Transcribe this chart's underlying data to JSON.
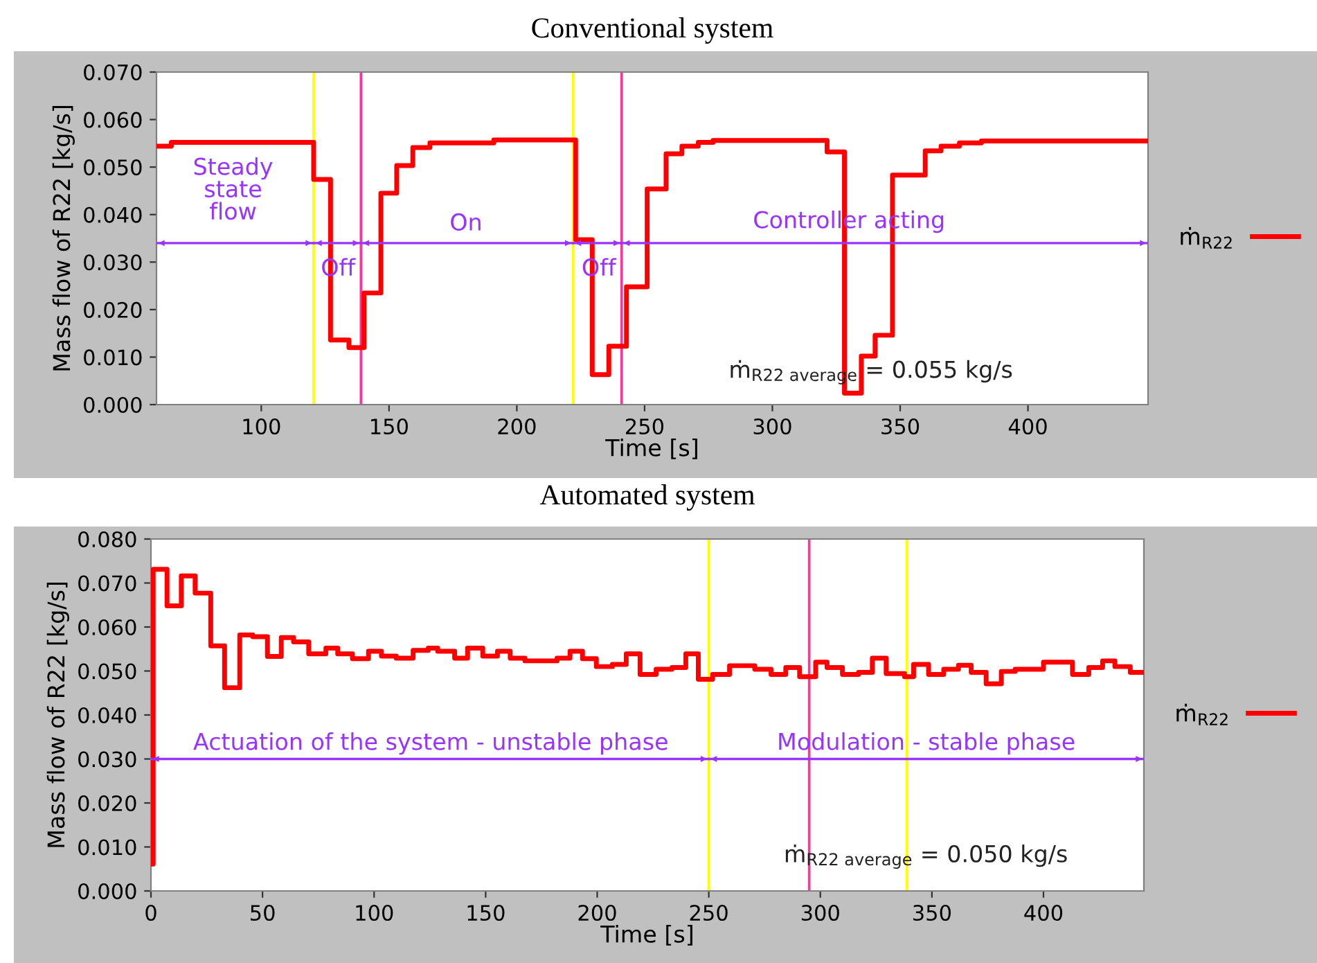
{
  "chart_data": [
    {
      "type": "step",
      "title": "Conventional system",
      "xlabel": "Time [s]",
      "ylabel": "Mass flow of R22 [kg/s]",
      "x": [
        59,
        64.8,
        120.5,
        127.1,
        134.3,
        140.2,
        146.8,
        153,
        159.3,
        166,
        191,
        223,
        229.5,
        236,
        242.9,
        251,
        258.4,
        264.6,
        271,
        276.8,
        321.4,
        328.2,
        334.8,
        340.2,
        347,
        359.8,
        366,
        373.2,
        381.8,
        447
      ],
      "series": [
        {
          "name": "ṁ$_{R22}$",
          "color": "#ff0000",
          "values": [
            0.0544,
            0.0552,
            0.0474,
            0.0136,
            0.012,
            0.0235,
            0.0445,
            0.0503,
            0.0541,
            0.0551,
            0.0557,
            0.0347,
            0.0063,
            0.0123,
            0.0248,
            0.0454,
            0.0528,
            0.0544,
            0.0552,
            0.0556,
            0.0532,
            0.0024,
            0.0102,
            0.0146,
            0.0483,
            0.0534,
            0.0544,
            0.0551,
            0.0555,
            0.0555
          ]
        },
        {
          "type": "line",
          "color": "#9933ff",
          "x": [
            59,
            120.5
          ],
          "values": [
            0.034,
            0.034
          ]
        },
        {
          "type": "line",
          "color": "#9933ff",
          "x": [
            120.5,
            139
          ],
          "values": [
            0.034,
            0.034
          ]
        },
        {
          "type": "line",
          "color": "#9933ff",
          "x": [
            139,
            222
          ],
          "values": [
            0.034,
            0.034
          ]
        },
        {
          "type": "line",
          "color": "#9933ff",
          "x": [
            222,
            241
          ],
          "values": [
            0.034,
            0.034
          ]
        },
        {
          "type": "line",
          "color": "#9933ff",
          "x": [
            241,
            447
          ],
          "values": [
            0.034,
            0.034
          ]
        }
      ],
      "xlim": [
        59,
        447
      ],
      "xticks": [
        100,
        150,
        200,
        250,
        300,
        350,
        400
      ],
      "ylim": [
        0,
        0.07
      ],
      "yticks": [
        {
          "value": 0,
          "label": "0.000"
        },
        {
          "value": 0.01,
          "label": "0.010"
        },
        {
          "value": 0.02,
          "label": "0.020"
        },
        {
          "value": 0.03,
          "label": "0.030"
        },
        {
          "value": 0.04,
          "label": "0.040"
        },
        {
          "value": 0.05,
          "label": "0.050"
        },
        {
          "value": 0.06,
          "label": "0.060"
        },
        {
          "value": 0.07,
          "label": "0.070"
        }
      ],
      "ref_lines": [
        {
          "axis": "x",
          "value": 120.5,
          "color": "#ffff00"
        },
        {
          "axis": "x",
          "value": 139,
          "color": "#ff3399"
        },
        {
          "axis": "x",
          "value": 222,
          "color": "#ffff00"
        },
        {
          "axis": "x",
          "value": 241,
          "color": "#ff3399"
        }
      ],
      "annotations": [
        "Steady\nstate\nflow",
        "Off",
        "On",
        "Off",
        "Controller acting",
        "ṁ$_{R22 average}$ = 0.055 kg/s"
      ],
      "legend": "right",
      "grid": false
    },
    {
      "type": "step",
      "title": "Automated system",
      "xlabel": "Time [s]",
      "ylabel": "Mass flow of R22 [kg/s]",
      "x": [
        0,
        1,
        7.2,
        13.6,
        19.8,
        26.8,
        33,
        39.8,
        45.6,
        52.2,
        58.4,
        63.9,
        70.7,
        78.4,
        83.7,
        90.3,
        97.5,
        103.3,
        109.9,
        117.5,
        124.3,
        128.5,
        136.1,
        141.9,
        148.7,
        155.3,
        161,
        167.6,
        182,
        187.8,
        193.4,
        199.6,
        206.8,
        213,
        219.2,
        226.4,
        233.5,
        239.7,
        245.3,
        251.7,
        259.3,
        270.6,
        277.9,
        284.5,
        290.7,
        297.9,
        303,
        309.9,
        317.1,
        323.3,
        329.5,
        337.7,
        341.8,
        348.5,
        355.3,
        361.9,
        367.6,
        374.3,
        381.1,
        387.3,
        400,
        413,
        420.3,
        426.5,
        432,
        438.9,
        445
      ],
      "series": [
        {
          "name": "ṁ$_{R22}$",
          "color": "#ff0000",
          "values": [
            0.0061,
            0.0731,
            0.0648,
            0.0716,
            0.0677,
            0.0557,
            0.0462,
            0.0582,
            0.0578,
            0.0533,
            0.0576,
            0.0566,
            0.0539,
            0.0552,
            0.0539,
            0.0528,
            0.0545,
            0.0534,
            0.0529,
            0.0547,
            0.0552,
            0.0545,
            0.0529,
            0.0552,
            0.0534,
            0.0545,
            0.0529,
            0.0523,
            0.0529,
            0.0545,
            0.0528,
            0.051,
            0.0515,
            0.0539,
            0.0492,
            0.0504,
            0.0508,
            0.0539,
            0.0481,
            0.0492,
            0.0512,
            0.0504,
            0.0492,
            0.0508,
            0.0487,
            0.052,
            0.0508,
            0.0492,
            0.0497,
            0.0529,
            0.0494,
            0.0487,
            0.0515,
            0.0492,
            0.0504,
            0.0513,
            0.0497,
            0.0471,
            0.0499,
            0.0504,
            0.052,
            0.0492,
            0.0508,
            0.0523,
            0.051,
            0.0497,
            0.0497
          ]
        },
        {
          "type": "line",
          "color": "#9933ff",
          "x": [
            0,
            250
          ],
          "values": [
            0.03,
            0.03
          ]
        },
        {
          "type": "line",
          "color": "#9933ff",
          "x": [
            250,
            445
          ],
          "values": [
            0.03,
            0.03
          ]
        }
      ],
      "xlim": [
        0,
        445
      ],
      "xticks": [
        0,
        50,
        100,
        150,
        200,
        250,
        300,
        350,
        400
      ],
      "ylim": [
        0,
        0.08
      ],
      "yticks": [
        {
          "value": 0,
          "label": "0.000"
        },
        {
          "value": 0.01,
          "label": "0.010"
        },
        {
          "value": 0.02,
          "label": "0.020"
        },
        {
          "value": 0.03,
          "label": "0.030"
        },
        {
          "value": 0.04,
          "label": "0.040"
        },
        {
          "value": 0.05,
          "label": "0.050"
        },
        {
          "value": 0.06,
          "label": "0.060"
        },
        {
          "value": 0.07,
          "label": "0.070"
        },
        {
          "value": 0.08,
          "label": "0.080"
        }
      ],
      "ref_lines": [
        {
          "axis": "x",
          "value": 250,
          "color": "#ffff00"
        },
        {
          "axis": "x",
          "value": 295,
          "color": "#ff3399"
        },
        {
          "axis": "x",
          "value": 338.8,
          "color": "#ffff00"
        }
      ],
      "annotations": [
        "Actuation of the system - unstable phase",
        "Modulation - stable phase",
        "ṁ$_{R22 average}$ = 0.050 kg/s"
      ],
      "legend": "right",
      "grid": false
    }
  ]
}
